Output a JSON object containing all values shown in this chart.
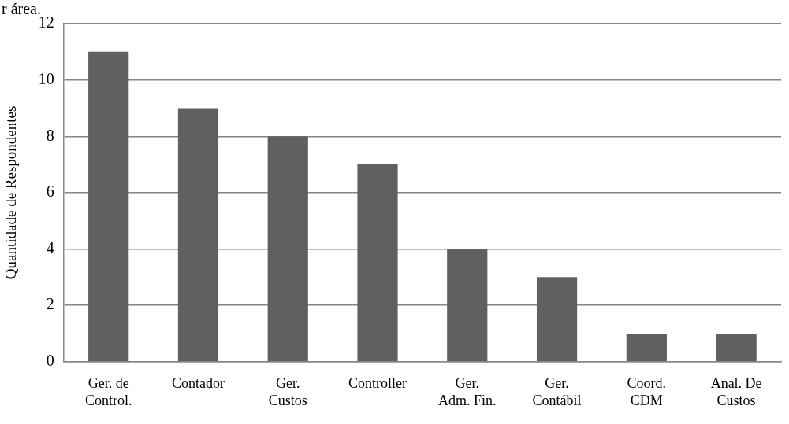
{
  "chart_data": {
    "type": "bar",
    "annotations": [
      "r área."
    ],
    "ylabel": "Quantidade de Respondentes",
    "categories": [
      "Ger. de Control.",
      "Contador",
      "Ger. Custos",
      "Controller",
      "Ger. Adm. Fin.",
      "Ger. Contábil",
      "Coord. CDM",
      "Anal. De Custos"
    ],
    "values": [
      11,
      9,
      8,
      7,
      4,
      3,
      1,
      1
    ],
    "color": "#606060",
    "ylim": [
      0,
      12
    ],
    "yticks": [
      0,
      2,
      4,
      6,
      8,
      10,
      12
    ],
    "grid": "y",
    "legend": false
  }
}
